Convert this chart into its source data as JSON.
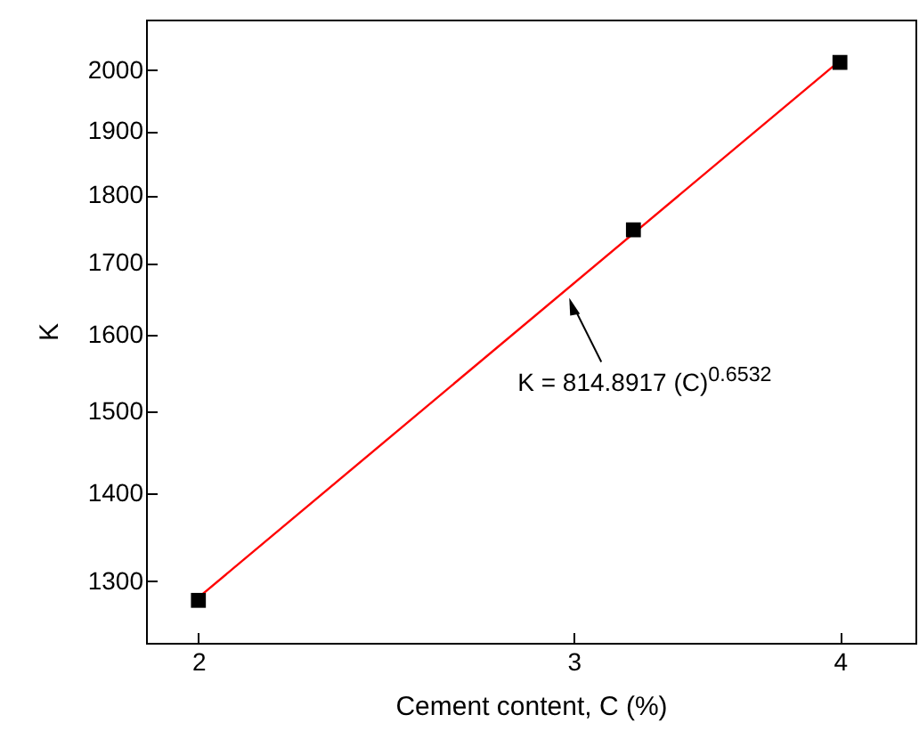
{
  "chart_data": {
    "type": "scatter",
    "xlabel": "Cement content, C (%)",
    "ylabel": "K",
    "log": "xy",
    "marker": "square",
    "grid": false,
    "series": [
      {
        "color": "#000000",
        "x": [
          2,
          3.2,
          4
        ],
        "values": [
          1279,
          1748,
          2013
        ]
      },
      {
        "type": "line",
        "color": "#ff0000",
        "x": [
          2,
          4
        ],
        "values": [
          1282,
          2016
        ],
        "marker": "none"
      }
    ],
    "xlim": [
      1.89,
      4.34
    ],
    "xticks": [
      2,
      3,
      4
    ],
    "ylim": [
      1234,
      2087
    ],
    "yticks": [
      1300,
      1400,
      1500,
      1600,
      1700,
      1800,
      1900,
      2000
    ],
    "annotations": [
      {
        "text": "K = 814.8917 (C)$^{0.6532}$",
        "x": 2.98,
        "y": 1663
      }
    ]
  }
}
